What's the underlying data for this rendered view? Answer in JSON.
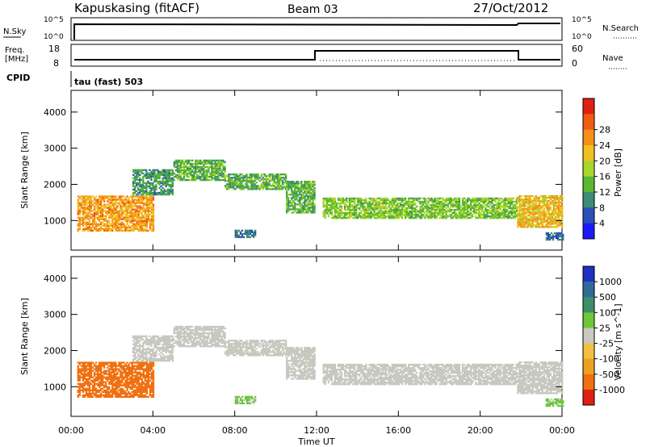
{
  "header": {
    "station": "Kapuskasing (fitACF)",
    "beam": "Beam 03",
    "date": "27/Oct/2012"
  },
  "panels": {
    "nsky": {
      "label": "N.Sky",
      "tick_hi": "10^5",
      "tick_lo": "10^0",
      "right_hi": "10^5",
      "right_lo": "10^0",
      "right_label": "N.Search"
    },
    "freq": {
      "label": "Freq.",
      "unit": "[MHz]",
      "tick_hi": "18",
      "tick_lo": "8",
      "right_hi": "60",
      "right_lo": "0",
      "right_label": "Nave"
    },
    "cpid": {
      "label": "CPID",
      "value": "tau (fast) 503"
    }
  },
  "chart_data": {
    "type": "heatmap",
    "xlabel": "Time UT",
    "x_ticks": [
      "00:00",
      "04:00",
      "08:00",
      "12:00",
      "16:00",
      "20:00",
      "00:00"
    ],
    "xlim_hours": [
      0,
      24
    ],
    "ylabel": "Slant Range [km]",
    "y_ticks": [
      "1000",
      "2000",
      "3000",
      "4000"
    ],
    "ylim_km": [
      180,
      4600
    ],
    "power_panel": {
      "colorbar_label": "Power [dB]",
      "colorbar_ticks": [
        "4",
        "8",
        "12",
        "16",
        "20",
        "24",
        "28"
      ],
      "colorbar_colors": [
        "#1a1aff",
        "#2c4fb8",
        "#3d8c75",
        "#5ab830",
        "#a8d62a",
        "#f0c020",
        "#f59018",
        "#f05a14",
        "#e02010"
      ]
    },
    "velocity_panel": {
      "colorbar_label": "Velocity [m s^-1]",
      "colorbar_ticks": [
        "1000",
        "500",
        "100",
        "25",
        "-25",
        "-100",
        "-500",
        "-1000"
      ],
      "colorbar_colors": [
        "#2030c0",
        "#2f6a9a",
        "#3c8f6a",
        "#6dc83a",
        "#c8c8c0",
        "#f0c040",
        "#f0a020",
        "#f07010",
        "#e02010"
      ]
    },
    "echo_bands": [
      {
        "t0": 0.3,
        "t1": 4.0,
        "r0": 700,
        "r1": 1650,
        "p": 20,
        "v": -300
      },
      {
        "t0": 3.0,
        "t1": 5.0,
        "r0": 1700,
        "r1": 2400,
        "p": 8,
        "v": 0
      },
      {
        "t0": 5.0,
        "t1": 7.5,
        "r0": 2100,
        "r1": 2650,
        "p": 10,
        "v": 0
      },
      {
        "t0": 7.5,
        "t1": 10.5,
        "r0": 1850,
        "r1": 2300,
        "p": 10,
        "v": 0
      },
      {
        "t0": 10.5,
        "t1": 11.9,
        "r0": 1200,
        "r1": 2100,
        "p": 10,
        "v": 0
      },
      {
        "t0": 12.3,
        "t1": 21.8,
        "r0": 1050,
        "r1": 1600,
        "p": 12,
        "v": 0
      },
      {
        "t0": 21.8,
        "t1": 24.0,
        "r0": 800,
        "r1": 1700,
        "p": 18,
        "v": 0
      },
      {
        "t0": 8.0,
        "t1": 9.0,
        "r0": 520,
        "r1": 720,
        "p": 6,
        "v": 60
      },
      {
        "t0": 23.2,
        "t1": 24.0,
        "r0": 450,
        "r1": 650,
        "p": 5,
        "v": 60
      }
    ]
  }
}
